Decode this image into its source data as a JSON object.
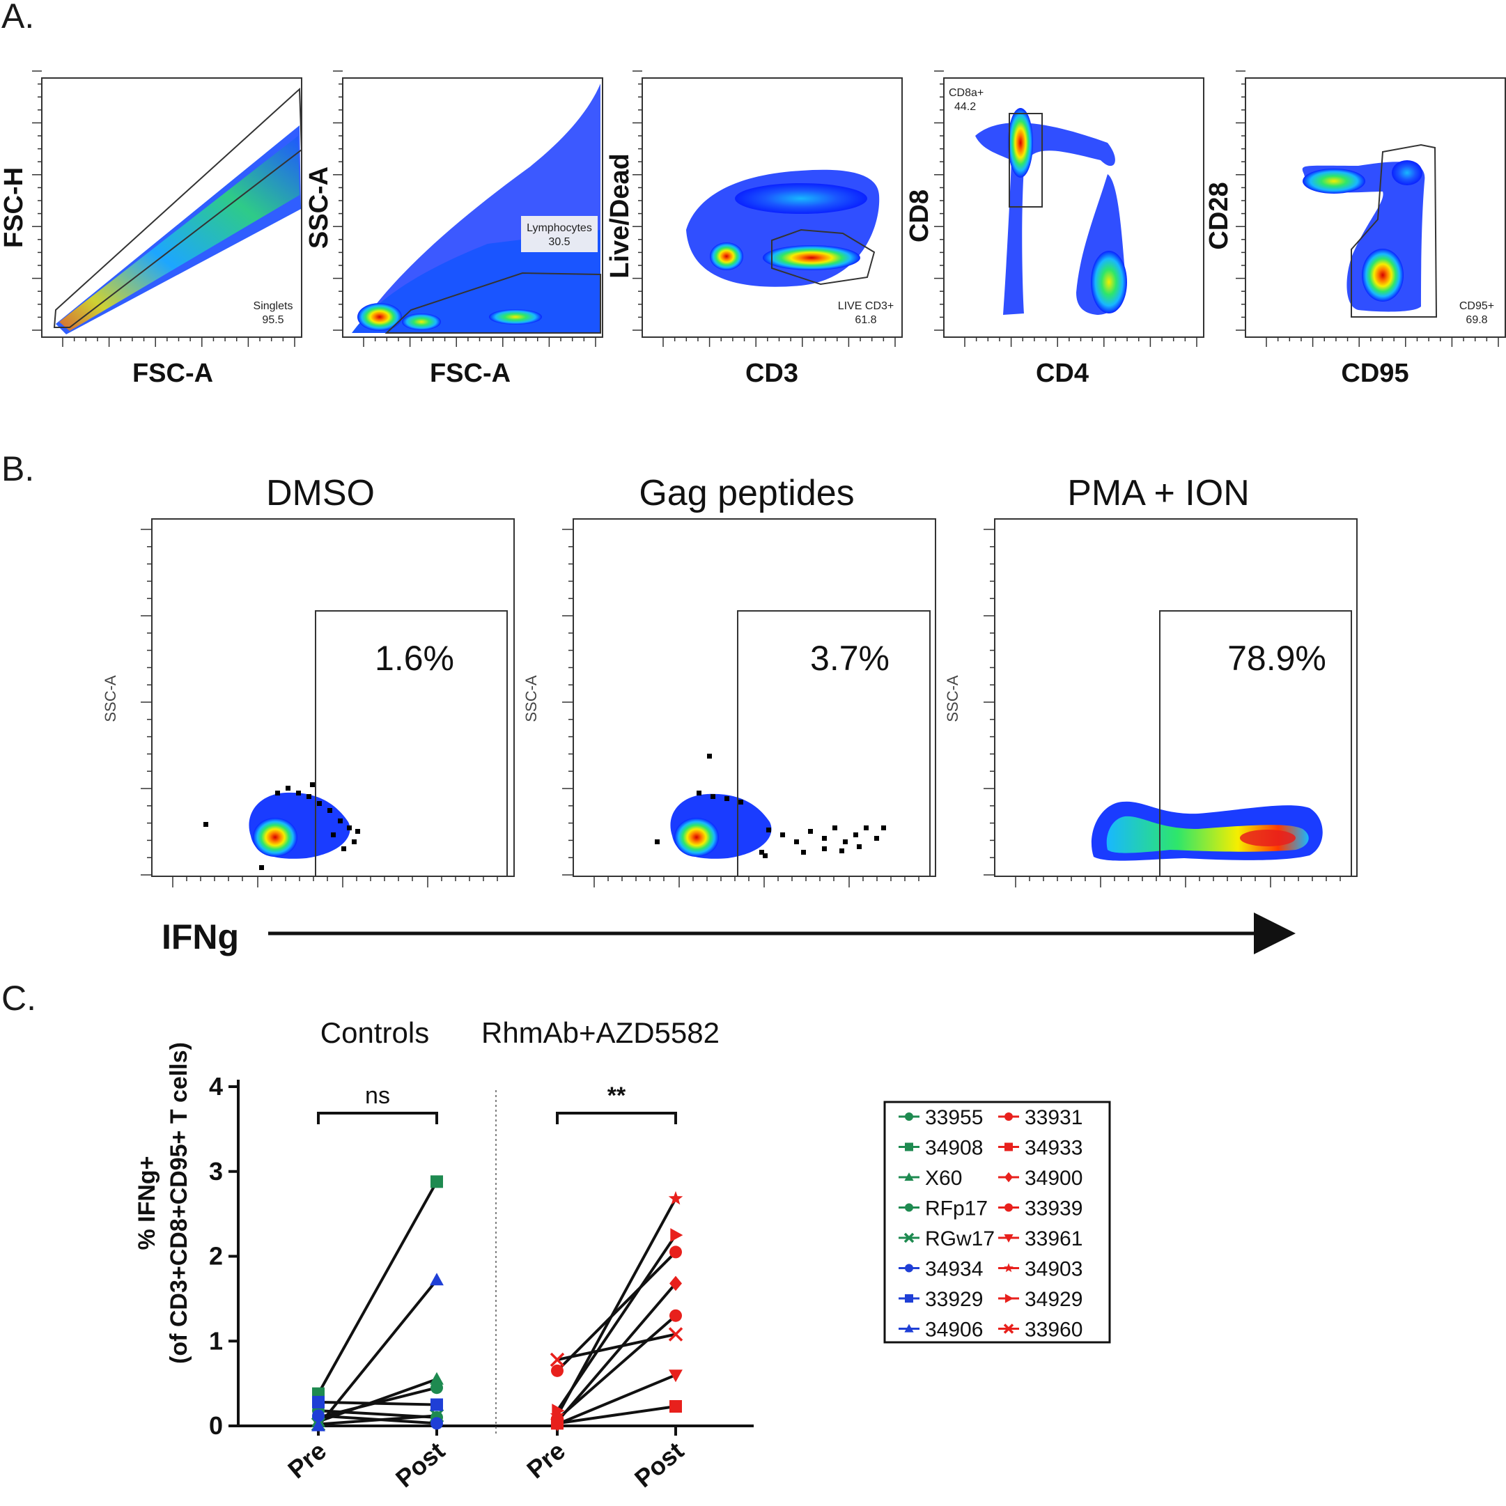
{
  "panel_a": {
    "letter": "A.",
    "plots": [
      {
        "x_label": "FSC-A",
        "y_label": "FSC-H",
        "gate_name": "Singlets",
        "gate_value": "95.5"
      },
      {
        "x_label": "FSC-A",
        "y_label": "SSC-A",
        "gate_name": "Lymphocytes",
        "gate_value": "30.5"
      },
      {
        "x_label": "CD3",
        "y_label": "Live/Dead",
        "gate_name": "LIVE CD3+",
        "gate_value": "61.8"
      },
      {
        "x_label": "CD4",
        "y_label": "CD8",
        "gate_name": "CD8a+",
        "gate_value": "44.2"
      },
      {
        "x_label": "CD95",
        "y_label": "CD28",
        "gate_name": "CD95+",
        "gate_value": "69.8"
      }
    ]
  },
  "panel_b": {
    "letter": "B.",
    "y_label": "SSC-A",
    "x_label": "IFNg",
    "plots": [
      {
        "title": "DMSO",
        "percent": "1.6%",
        "percent_value": 1.6
      },
      {
        "title": "Gag peptides",
        "percent": "3.7%",
        "percent_value": 3.7
      },
      {
        "title": "PMA + ION",
        "percent": "78.9%",
        "percent_value": 78.9
      }
    ]
  },
  "panel_c": {
    "letter": "C.",
    "chart_data": {
      "type": "line",
      "ylabel_line1": "% IFNg+",
      "ylabel_line2": "(of CD3+CD8+CD95+ T cells)",
      "ylim": [
        0,
        4
      ],
      "yticks": [
        "0",
        "1",
        "2",
        "3",
        "4"
      ],
      "groups": [
        {
          "name": "Controls",
          "categories": [
            "Pre",
            "Post"
          ],
          "significance": "ns"
        },
        {
          "name": "RhmAb+AZD5582",
          "categories": [
            "Pre",
            "Post"
          ],
          "significance": "**"
        }
      ],
      "series": [
        {
          "name": "33955",
          "group": 0,
          "color": "#1e8a50",
          "marker": "circle",
          "values": [
            0.18,
            0.1
          ]
        },
        {
          "name": "34908",
          "group": 0,
          "color": "#1e8a50",
          "marker": "square",
          "values": [
            0.38,
            2.88
          ]
        },
        {
          "name": "X60",
          "group": 0,
          "color": "#1e8a50",
          "marker": "triangle",
          "values": [
            0.05,
            0.55
          ]
        },
        {
          "name": "RFp17",
          "group": 0,
          "color": "#1e8a50",
          "marker": "circle",
          "values": [
            0.1,
            0.45
          ]
        },
        {
          "name": "RGw17",
          "group": 0,
          "color": "#1e8a50",
          "marker": "x",
          "values": [
            0.02,
            0.12
          ]
        },
        {
          "name": "34934",
          "group": 0,
          "color": "#1f3fd6",
          "marker": "circle",
          "values": [
            0.12,
            0.03
          ]
        },
        {
          "name": "33929",
          "group": 0,
          "color": "#1f3fd6",
          "marker": "square",
          "values": [
            0.28,
            0.25
          ]
        },
        {
          "name": "34906",
          "group": 0,
          "color": "#1f3fd6",
          "marker": "triangle",
          "values": [
            0.0,
            1.72
          ]
        },
        {
          "name": "33931",
          "group": 1,
          "color": "#e8201c",
          "marker": "circle",
          "values": [
            0.65,
            2.05
          ]
        },
        {
          "name": "34933",
          "group": 1,
          "color": "#e8201c",
          "marker": "square",
          "values": [
            0.03,
            0.23
          ]
        },
        {
          "name": "34900",
          "group": 1,
          "color": "#e8201c",
          "marker": "diamond",
          "values": [
            0.05,
            1.68
          ]
        },
        {
          "name": "33939",
          "group": 1,
          "color": "#e8201c",
          "marker": "circle",
          "values": [
            0.08,
            1.3
          ]
        },
        {
          "name": "33961",
          "group": 1,
          "color": "#e8201c",
          "marker": "triangle-down",
          "values": [
            0.02,
            0.6
          ]
        },
        {
          "name": "34903",
          "group": 1,
          "color": "#e8201c",
          "marker": "star",
          "values": [
            0.12,
            2.68
          ]
        },
        {
          "name": "34929",
          "group": 1,
          "color": "#e8201c",
          "marker": "triangle-right",
          "values": [
            0.18,
            2.25
          ]
        },
        {
          "name": "33960",
          "group": 1,
          "color": "#e8201c",
          "marker": "x",
          "values": [
            0.78,
            1.08
          ]
        }
      ]
    }
  }
}
